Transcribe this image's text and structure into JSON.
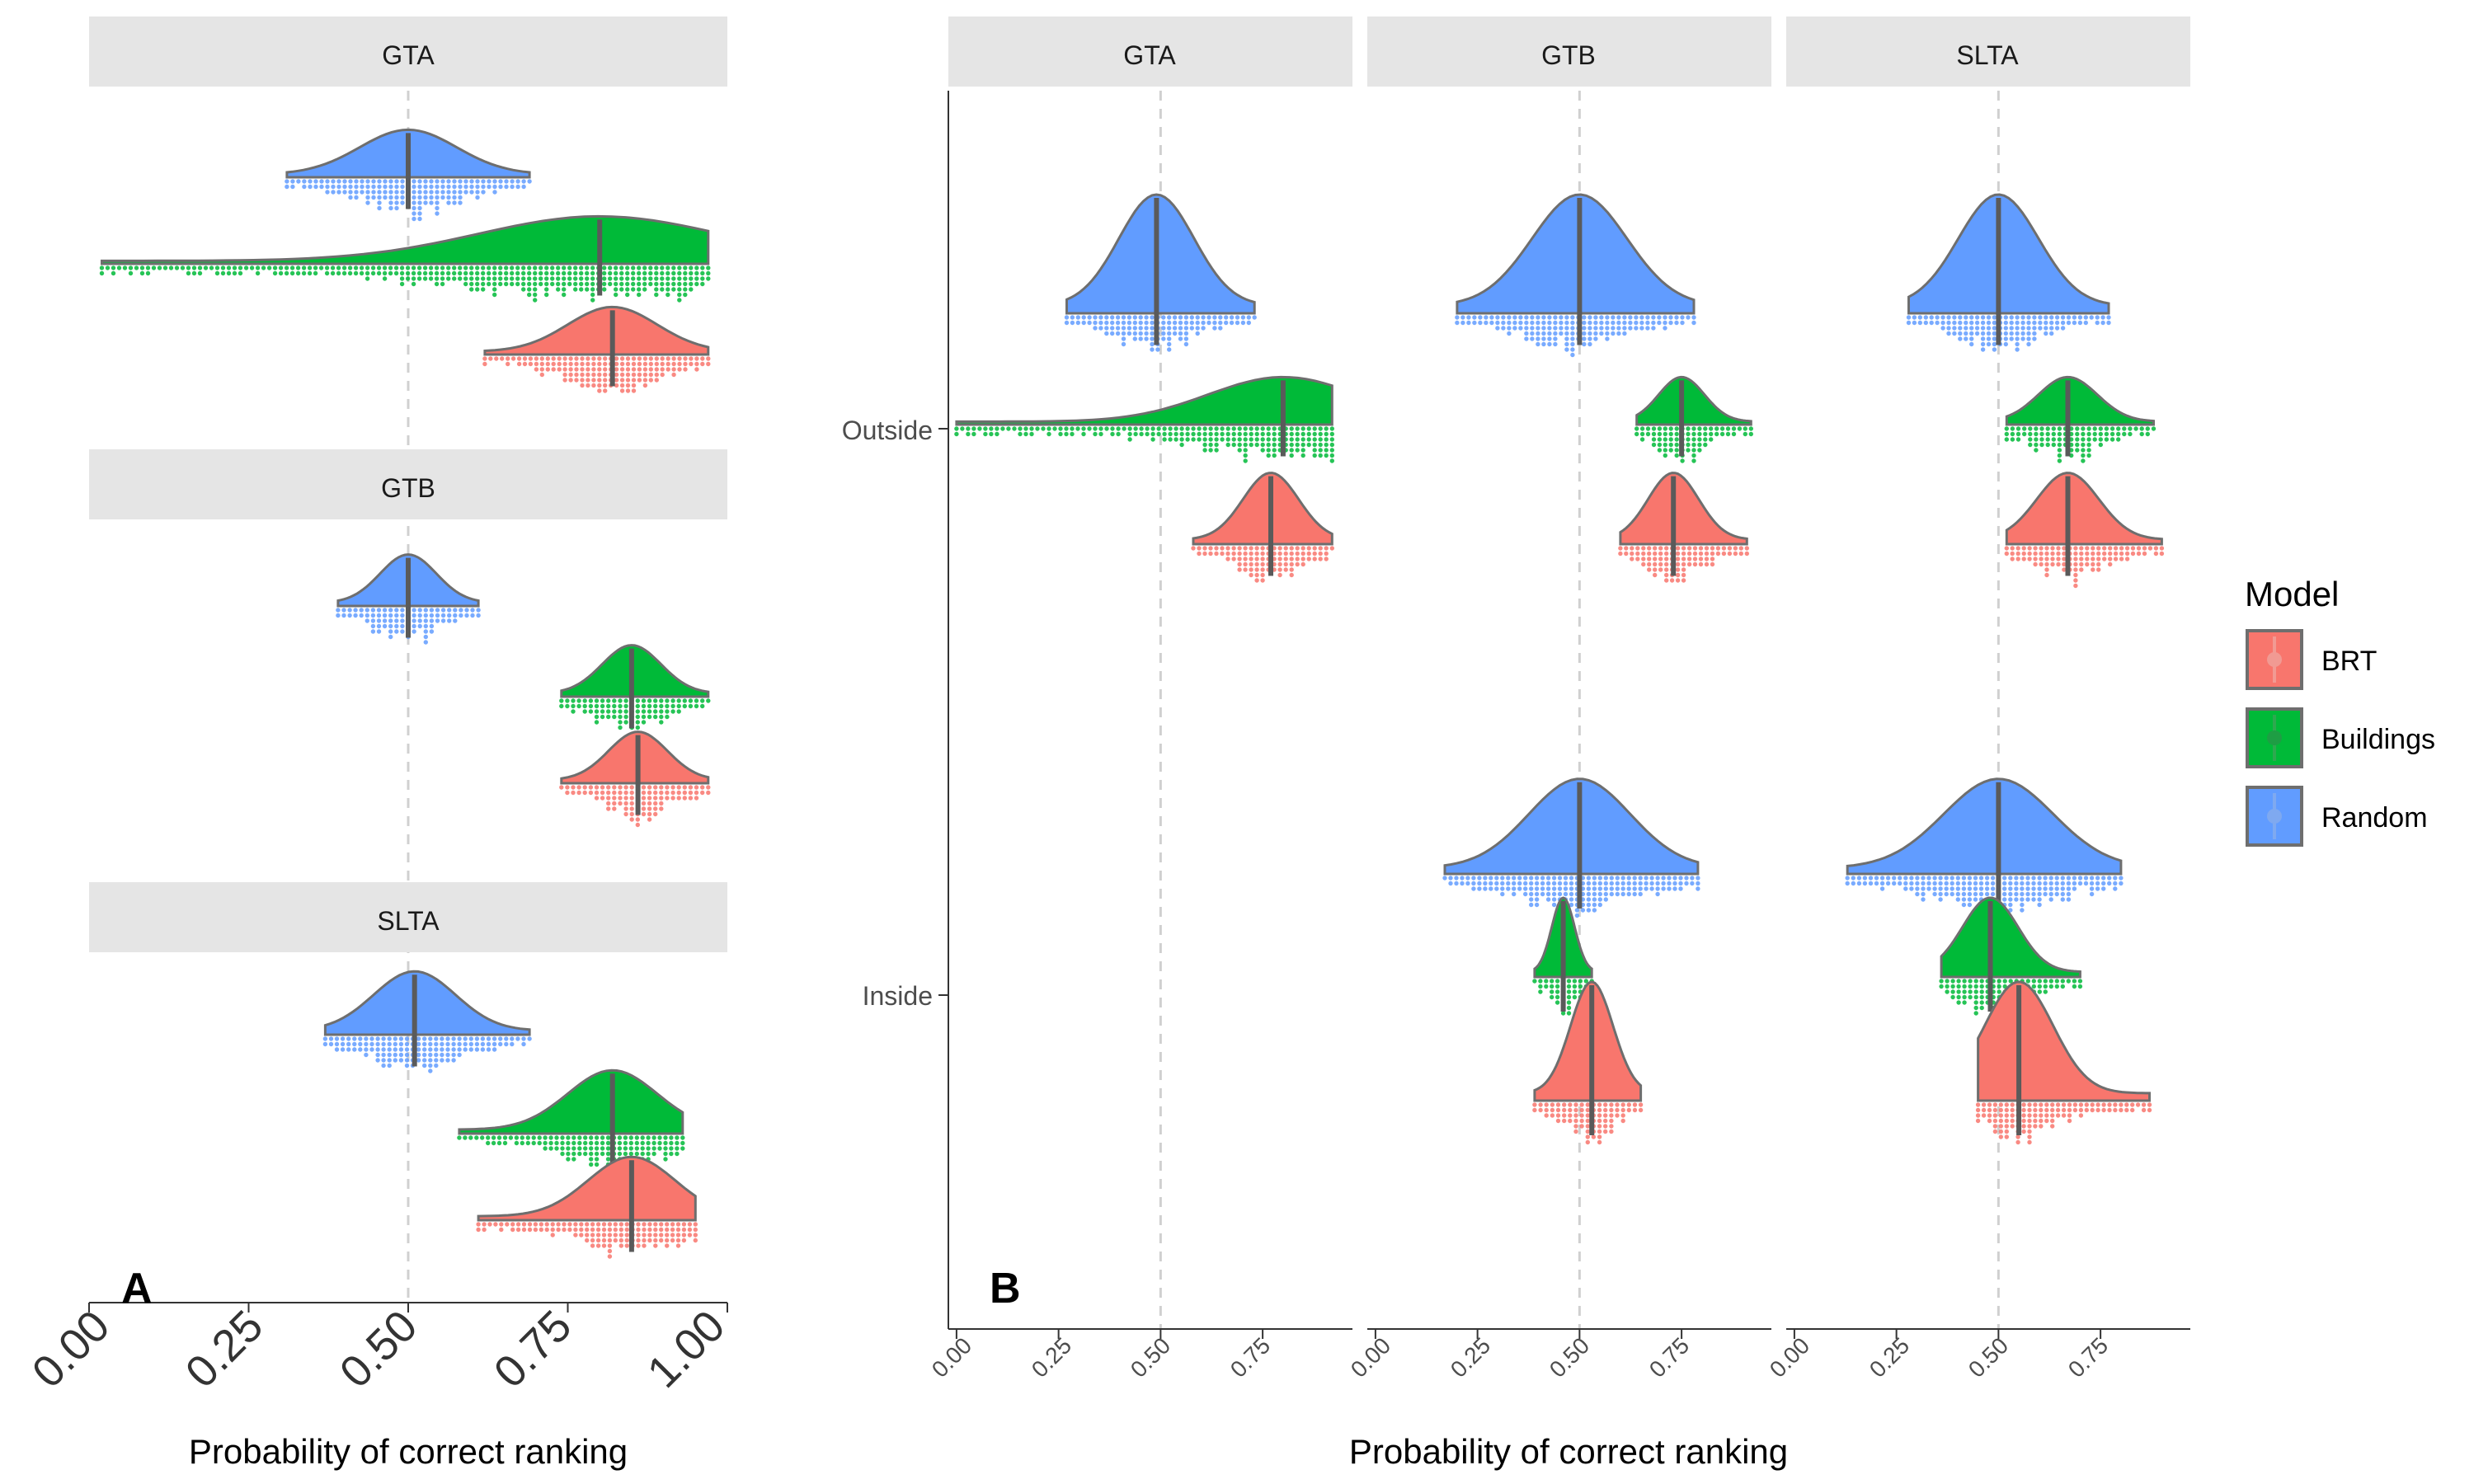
{
  "colors": {
    "BRT": "#F8766D",
    "Buildings": "#00BA38",
    "Random": "#619CFF",
    "density_outline": "#6E6E6E",
    "median_line": "#5A5A5A",
    "strip_fill": "#E5E5E5",
    "axis": "#333333",
    "reference_line": "#D0D0D0"
  },
  "legend": {
    "title": "Model",
    "items": [
      "BRT",
      "Buildings",
      "Random"
    ]
  },
  "panel_A": {
    "tag": "A",
    "xlabel": "Probability of correct ranking",
    "x_ticks": [
      "0.00",
      "0.25",
      "0.50",
      "0.75",
      "1.00"
    ],
    "facets": [
      "GTA",
      "GTB",
      "SLTA"
    ]
  },
  "panel_B": {
    "tag": "B",
    "xlabel": "Probability of correct ranking",
    "x_ticks": [
      "0.00",
      "0.25",
      "0.50",
      "0.75"
    ],
    "facets": [
      "GTA",
      "GTB",
      "SLTA"
    ],
    "y_categories": [
      "Outside",
      "Inside"
    ]
  },
  "chart_data": [
    {
      "type": "raincloud",
      "tag": "A",
      "xlabel": "Probability of correct ranking",
      "xlim": [
        0,
        1
      ],
      "reference_x": 0.5,
      "facets": [
        {
          "name": "GTA",
          "series": [
            {
              "name": "Random",
              "median": 0.5,
              "range": [
                0.31,
                0.69
              ]
            },
            {
              "name": "Buildings",
              "median": 0.8,
              "range": [
                0.02,
                0.97
              ]
            },
            {
              "name": "BRT",
              "median": 0.82,
              "range": [
                0.62,
                0.97
              ]
            }
          ]
        },
        {
          "name": "GTB",
          "series": [
            {
              "name": "Random",
              "median": 0.5,
              "range": [
                0.39,
                0.61
              ]
            },
            {
              "name": "Buildings",
              "median": 0.85,
              "range": [
                0.74,
                0.97
              ]
            },
            {
              "name": "BRT",
              "median": 0.86,
              "range": [
                0.74,
                0.97
              ]
            }
          ]
        },
        {
          "name": "SLTA",
          "series": [
            {
              "name": "Random",
              "median": 0.51,
              "range": [
                0.37,
                0.69
              ]
            },
            {
              "name": "Buildings",
              "median": 0.82,
              "range": [
                0.58,
                0.93
              ]
            },
            {
              "name": "BRT",
              "median": 0.85,
              "range": [
                0.61,
                0.95
              ]
            }
          ]
        }
      ]
    },
    {
      "type": "raincloud",
      "tag": "B",
      "xlabel": "Probability of correct ranking",
      "xlim": [
        -0.02,
        0.97
      ],
      "reference_x": 0.5,
      "y_categories": [
        "Outside",
        "Inside"
      ],
      "facets": [
        {
          "name": "GTA",
          "Outside": [
            {
              "name": "Random",
              "median": 0.49,
              "range": [
                0.27,
                0.73
              ]
            },
            {
              "name": "Buildings",
              "median": 0.8,
              "range": [
                0.0,
                0.92
              ]
            },
            {
              "name": "BRT",
              "median": 0.77,
              "range": [
                0.58,
                0.92
              ]
            }
          ],
          "Inside": []
        },
        {
          "name": "GTB",
          "Outside": [
            {
              "name": "Random",
              "median": 0.5,
              "range": [
                0.2,
                0.78
              ]
            },
            {
              "name": "Buildings",
              "median": 0.75,
              "range": [
                0.64,
                0.92
              ]
            },
            {
              "name": "BRT",
              "median": 0.73,
              "range": [
                0.6,
                0.91
              ]
            }
          ],
          "Inside": [
            {
              "name": "Random",
              "median": 0.5,
              "range": [
                0.17,
                0.79
              ]
            },
            {
              "name": "Buildings",
              "median": 0.46,
              "range": [
                0.39,
                0.53
              ]
            },
            {
              "name": "BRT",
              "median": 0.53,
              "range": [
                0.39,
                0.65
              ]
            }
          ]
        },
        {
          "name": "SLTA",
          "Outside": [
            {
              "name": "Random",
              "median": 0.5,
              "range": [
                0.28,
                0.77
              ]
            },
            {
              "name": "Buildings",
              "median": 0.67,
              "range": [
                0.52,
                0.88
              ]
            },
            {
              "name": "BRT",
              "median": 0.67,
              "range": [
                0.52,
                0.9
              ]
            }
          ],
          "Inside": [
            {
              "name": "Random",
              "median": 0.5,
              "range": [
                0.13,
                0.8
              ]
            },
            {
              "name": "Buildings",
              "median": 0.48,
              "range": [
                0.36,
                0.7
              ]
            },
            {
              "name": "BRT",
              "median": 0.55,
              "range": [
                0.45,
                0.87
              ]
            }
          ]
        }
      ]
    }
  ]
}
